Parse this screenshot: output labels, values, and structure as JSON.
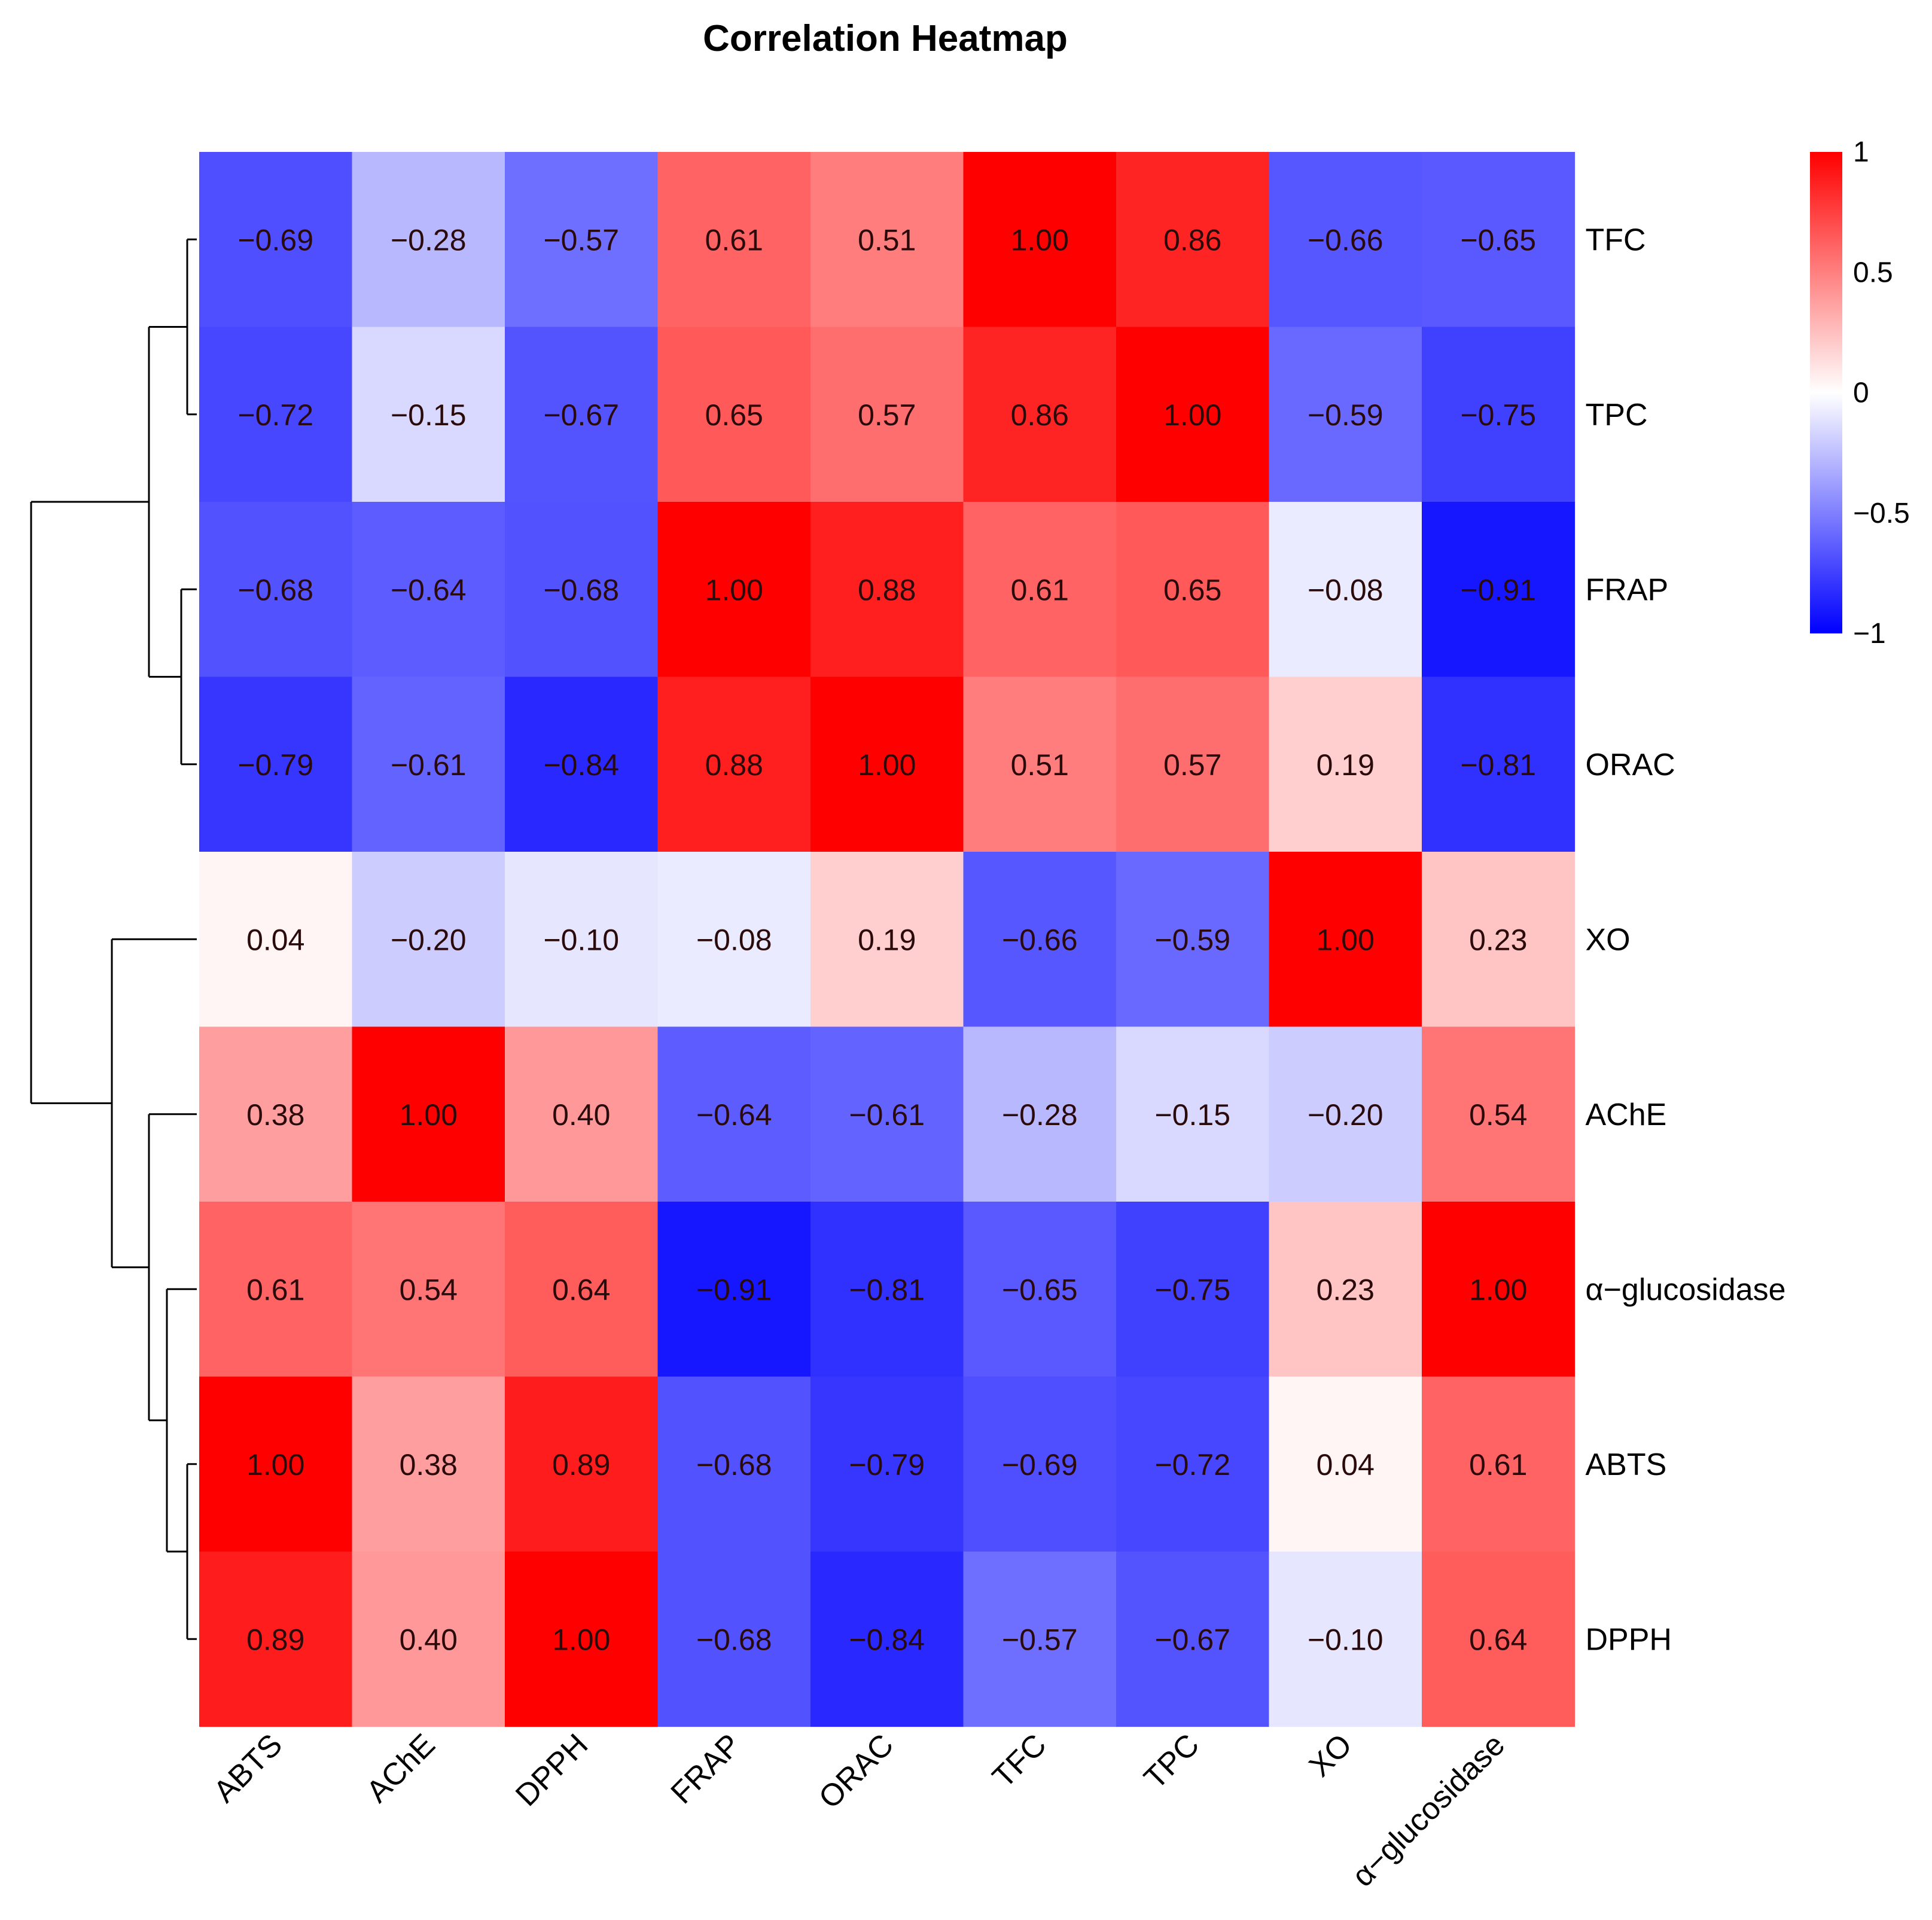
{
  "chart_data": {
    "type": "heatmap",
    "title": "Correlation Heatmap",
    "columns": [
      "ABTS",
      "AChE",
      "DPPH",
      "FRAP",
      "ORAC",
      "TFC",
      "TPC",
      "XO",
      "α−glucosidase"
    ],
    "rows": [
      "TFC",
      "TPC",
      "FRAP",
      "ORAC",
      "XO",
      "AChE",
      "α−glucosidase",
      "ABTS",
      "DPPH"
    ],
    "values": [
      [
        -0.69,
        -0.28,
        -0.57,
        0.61,
        0.51,
        1.0,
        0.86,
        -0.66,
        -0.65
      ],
      [
        -0.72,
        -0.15,
        -0.67,
        0.65,
        0.57,
        0.86,
        1.0,
        -0.59,
        -0.75
      ],
      [
        -0.68,
        -0.64,
        -0.68,
        1.0,
        0.88,
        0.61,
        0.65,
        -0.08,
        -0.91
      ],
      [
        -0.79,
        -0.61,
        -0.84,
        0.88,
        1.0,
        0.51,
        0.57,
        0.19,
        -0.81
      ],
      [
        0.04,
        -0.2,
        -0.1,
        -0.08,
        0.19,
        -0.66,
        -0.59,
        1.0,
        0.23
      ],
      [
        0.38,
        1.0,
        0.4,
        -0.64,
        -0.61,
        -0.28,
        -0.15,
        -0.2,
        0.54
      ],
      [
        0.61,
        0.54,
        0.64,
        -0.91,
        -0.81,
        -0.65,
        -0.75,
        0.23,
        1.0
      ],
      [
        1.0,
        0.38,
        0.89,
        -0.68,
        -0.79,
        -0.69,
        -0.72,
        0.04,
        0.61
      ],
      [
        0.89,
        0.4,
        1.0,
        -0.68,
        -0.84,
        -0.57,
        -0.67,
        -0.1,
        0.64
      ]
    ],
    "value_range": [
      -1,
      1
    ],
    "colorscale": {
      "low": "#0000ff",
      "mid": "#ffffff",
      "high": "#ff0000"
    },
    "legend": {
      "position": "top-right",
      "ticks": [
        1,
        0.5,
        0,
        -0.5,
        -1
      ],
      "tick_labels": [
        "1",
        "0.5",
        "0",
        "−0.5",
        "−1"
      ]
    },
    "row_dendrogram": true,
    "cell_labels_format": "2-decimal"
  }
}
